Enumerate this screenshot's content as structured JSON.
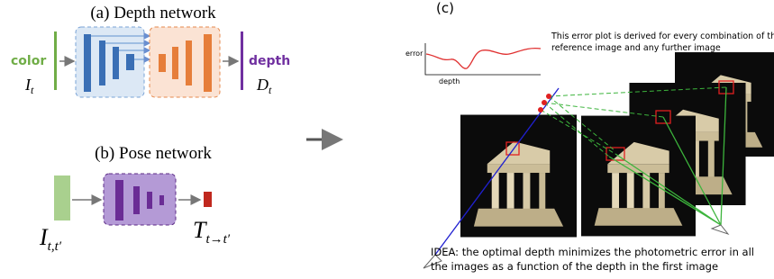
{
  "panel_a": {
    "title": "(a) Depth network",
    "input_label": "color",
    "input_symbol": "I",
    "input_subscript": "t",
    "output_label": "depth",
    "output_symbol": "D",
    "output_subscript": "t"
  },
  "panel_b": {
    "title": "(b) Pose network",
    "input_symbol": "I",
    "input_subscript": "t,t′",
    "output_symbol": "T",
    "output_subscript": "t→t′"
  },
  "panel_c": {
    "label": "(c)",
    "note_lines": [
      "This error plot is derived for every combination of the",
      "reference image and any further image"
    ],
    "plot_y_label": "error",
    "plot_x_label": "depth",
    "idea_lines": [
      "IDEA: the optimal depth minimizes the photometric error in all",
      "the images as a function of the depth in the first image"
    ]
  }
}
